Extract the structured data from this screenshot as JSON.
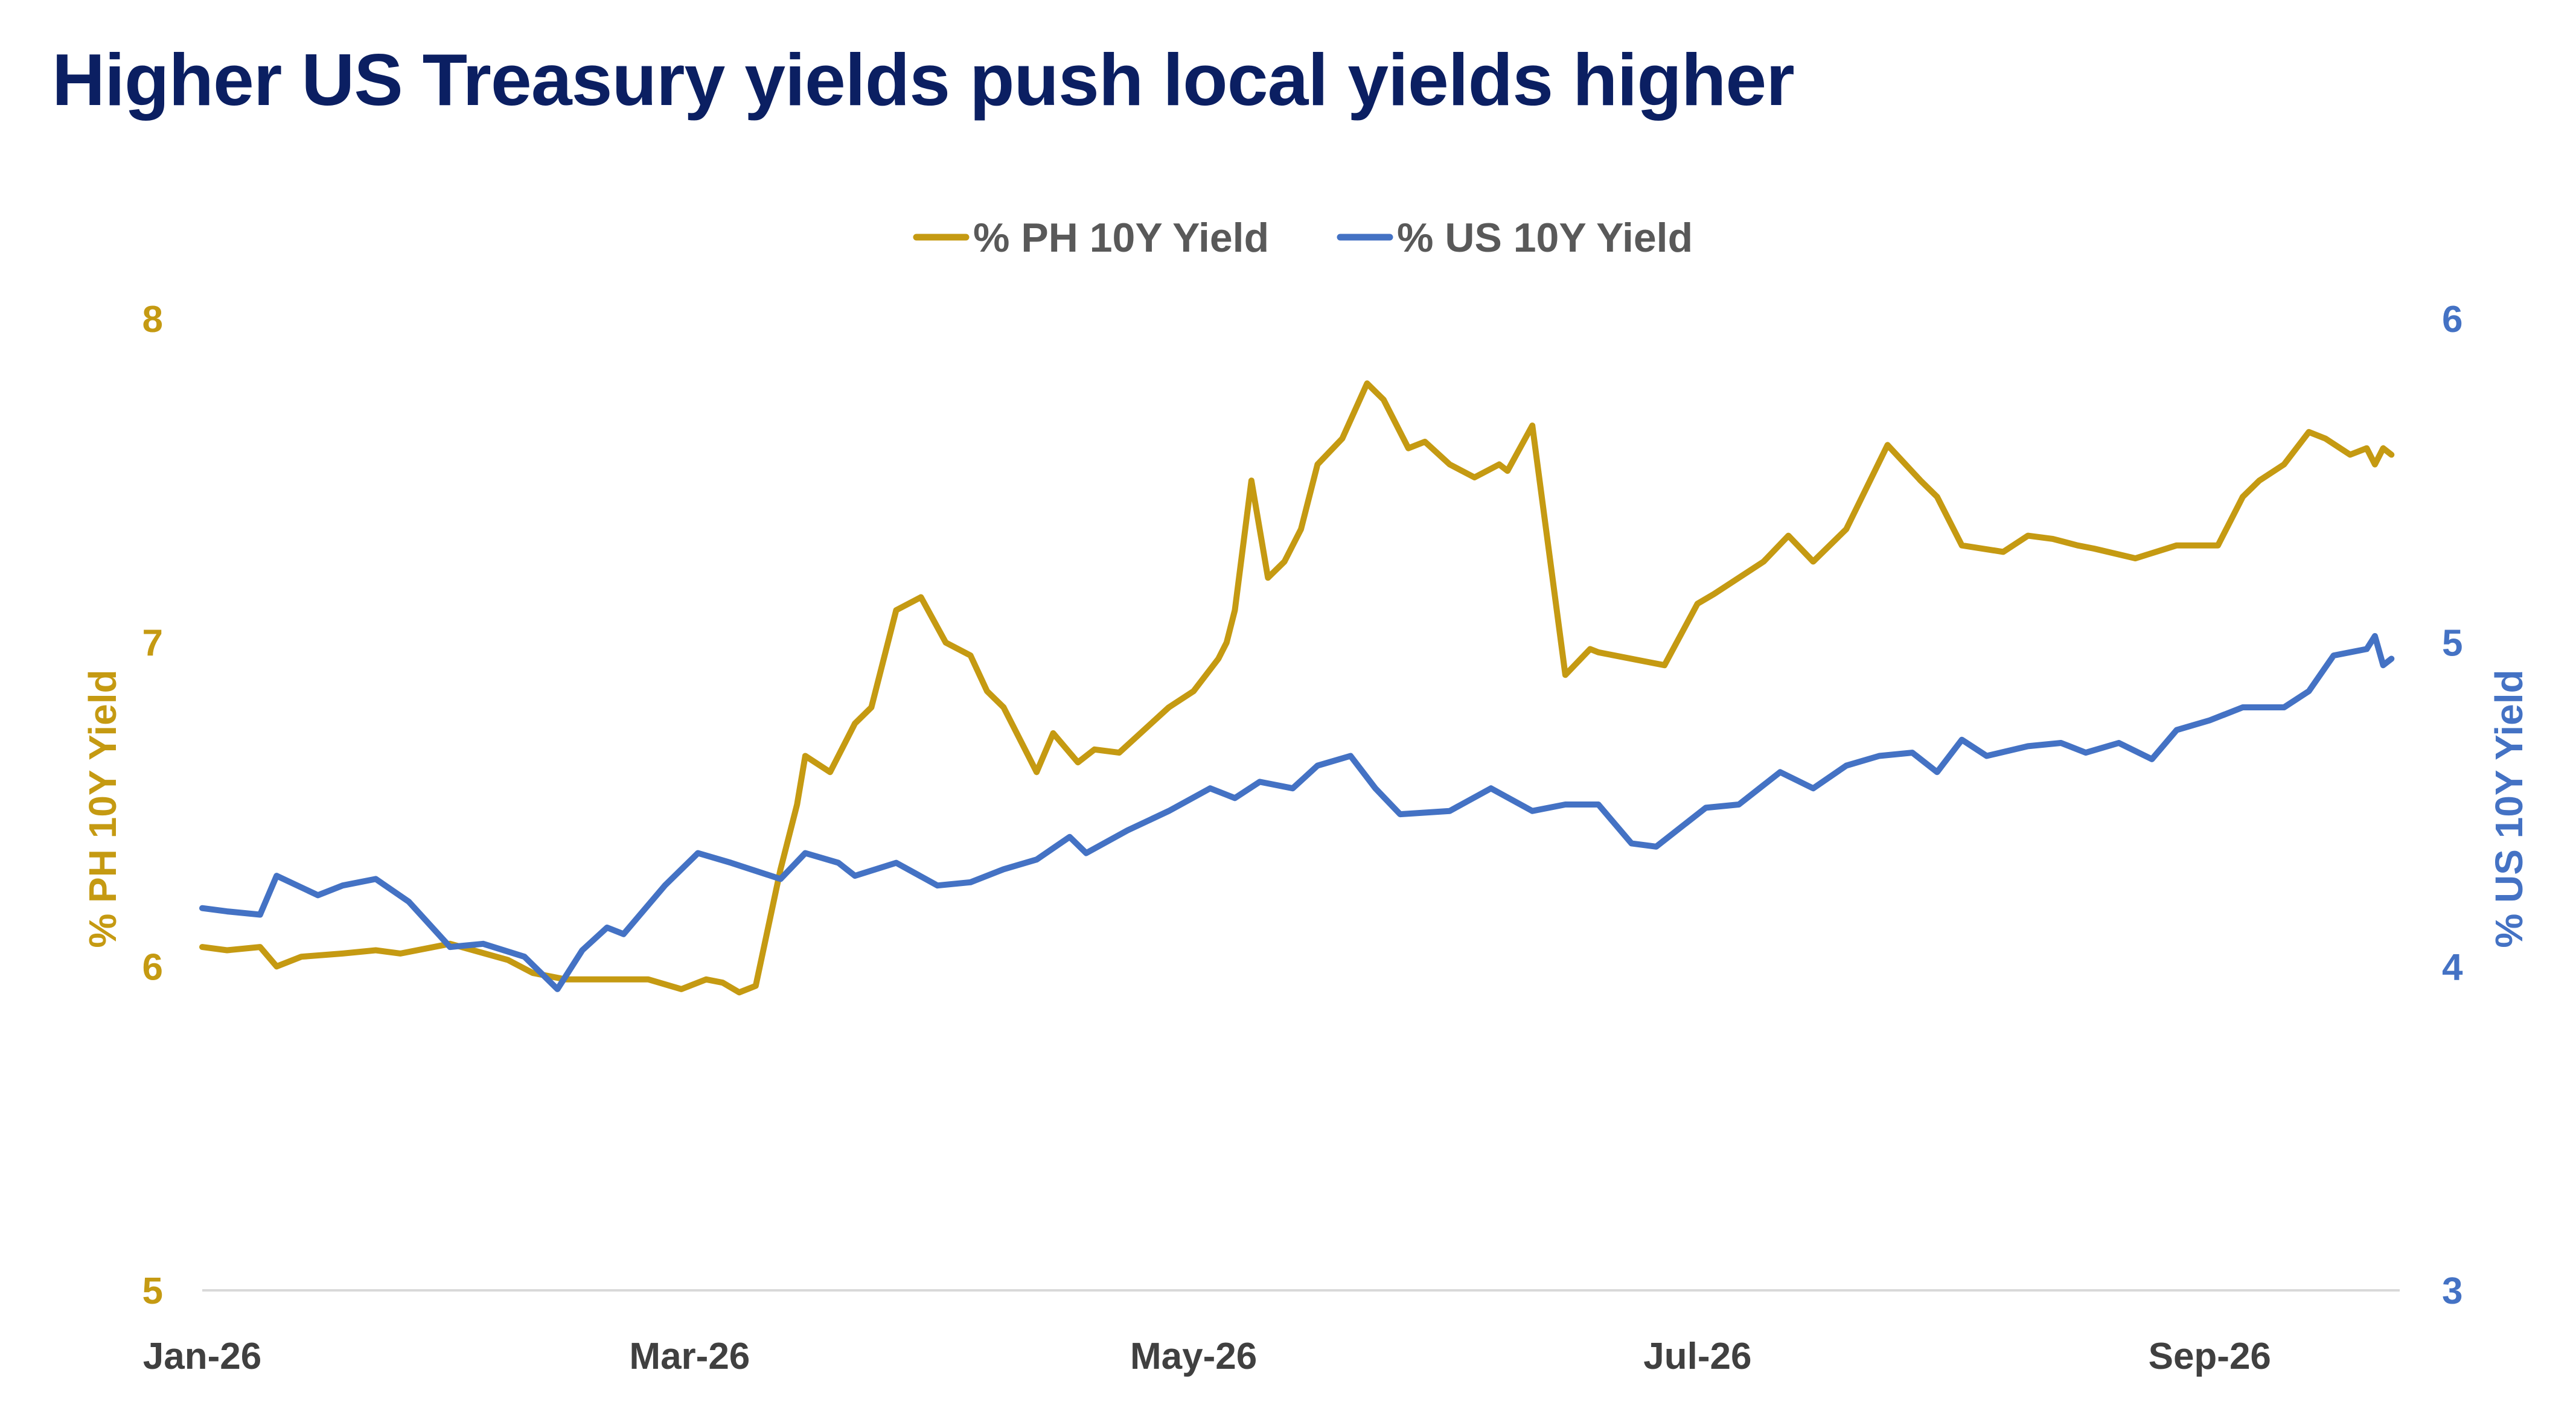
{
  "chart_data": {
    "type": "line",
    "title": "Higher US Treasury yields push local yields higher",
    "x_tick_labels": [
      "Jan-26",
      "Mar-26",
      "May-26",
      "Jul-26",
      "Sep-26"
    ],
    "x_tick_dates": [
      "2026-01-01",
      "2026-03-01",
      "2026-05-01",
      "2026-07-01",
      "2026-09-01"
    ],
    "xlim": [
      "2026-01-01",
      "2026-09-24"
    ],
    "y_left": {
      "label": "% PH 10Y Yield",
      "ylim": [
        5,
        8
      ],
      "ticks": [
        5,
        6,
        7,
        8
      ],
      "color": "#c59a12"
    },
    "y_right": {
      "label": "% US 10Y Yield",
      "ylim": [
        3,
        6
      ],
      "ticks": [
        3,
        4,
        5,
        6
      ],
      "color": "#4472c4"
    },
    "legend": {
      "placement": "top-center"
    },
    "grid": false,
    "series": [
      {
        "name": "% PH 10Y Yield",
        "axis": "left",
        "color": "#c59a12",
        "x": [
          "2026-01-01",
          "2026-01-04",
          "2026-01-08",
          "2026-01-10",
          "2026-01-13",
          "2026-01-18",
          "2026-01-22",
          "2026-01-25",
          "2026-01-31",
          "2026-02-07",
          "2026-02-10",
          "2026-02-14",
          "2026-02-19",
          "2026-02-24",
          "2026-02-28",
          "2026-03-03",
          "2026-03-05",
          "2026-03-07",
          "2026-03-09",
          "2026-03-12",
          "2026-03-14",
          "2026-03-15",
          "2026-03-18",
          "2026-03-21",
          "2026-03-23",
          "2026-03-26",
          "2026-03-29",
          "2026-04-01",
          "2026-04-04",
          "2026-04-06",
          "2026-04-08",
          "2026-04-12",
          "2026-04-14",
          "2026-04-17",
          "2026-04-19",
          "2026-04-22",
          "2026-04-28",
          "2026-05-01",
          "2026-05-04",
          "2026-05-05",
          "2026-05-06",
          "2026-05-08",
          "2026-05-10",
          "2026-05-12",
          "2026-05-14",
          "2026-05-16",
          "2026-05-19",
          "2026-05-22",
          "2026-05-24",
          "2026-05-27",
          "2026-05-29",
          "2026-06-01",
          "2026-06-04",
          "2026-06-07",
          "2026-06-08",
          "2026-06-11",
          "2026-06-15",
          "2026-06-18",
          "2026-06-19",
          "2026-06-25",
          "2026-06-27",
          "2026-07-01",
          "2026-07-03",
          "2026-07-09",
          "2026-07-12",
          "2026-07-15",
          "2026-07-19",
          "2026-07-24",
          "2026-07-28",
          "2026-07-30",
          "2026-08-02",
          "2026-08-07",
          "2026-08-10",
          "2026-08-13",
          "2026-08-16",
          "2026-08-18",
          "2026-08-23",
          "2026-08-28",
          "2026-09-02",
          "2026-09-05",
          "2026-09-07",
          "2026-09-10",
          "2026-09-13",
          "2026-09-15",
          "2026-09-18",
          "2026-09-20",
          "2026-09-21",
          "2026-09-22",
          "2026-09-23"
        ],
        "values": [
          6.06,
          6.05,
          6.06,
          6.0,
          6.03,
          6.04,
          6.05,
          6.04,
          6.07,
          6.02,
          5.98,
          5.96,
          5.96,
          5.96,
          5.93,
          5.96,
          5.95,
          5.92,
          5.94,
          6.3,
          6.5,
          6.65,
          6.6,
          6.75,
          6.8,
          7.1,
          7.14,
          7.0,
          6.96,
          6.85,
          6.8,
          6.6,
          6.72,
          6.63,
          6.67,
          6.66,
          6.8,
          6.85,
          6.95,
          7.0,
          7.1,
          7.5,
          7.2,
          7.25,
          7.35,
          7.55,
          7.63,
          7.8,
          7.75,
          7.6,
          7.62,
          7.55,
          7.51,
          7.55,
          7.53,
          7.67,
          6.9,
          6.98,
          6.97,
          6.94,
          6.93,
          7.12,
          7.15,
          7.25,
          7.33,
          7.25,
          7.35,
          7.61,
          7.5,
          7.45,
          7.3,
          7.28,
          7.33,
          7.32,
          7.3,
          7.29,
          7.26,
          7.3,
          7.3,
          7.45,
          7.5,
          7.55,
          7.65,
          7.63,
          7.58,
          7.6,
          7.55,
          7.6,
          7.58
        ]
      },
      {
        "name": "% US 10Y Yield",
        "axis": "right",
        "color": "#4472c4",
        "x": [
          "2026-01-01",
          "2026-01-04",
          "2026-01-08",
          "2026-01-10",
          "2026-01-15",
          "2026-01-18",
          "2026-01-22",
          "2026-01-26",
          "2026-01-31",
          "2026-02-04",
          "2026-02-09",
          "2026-02-13",
          "2026-02-16",
          "2026-02-19",
          "2026-02-21",
          "2026-02-26",
          "2026-03-02",
          "2026-03-06",
          "2026-03-12",
          "2026-03-15",
          "2026-03-19",
          "2026-03-21",
          "2026-03-26",
          "2026-03-31",
          "2026-04-04",
          "2026-04-08",
          "2026-04-12",
          "2026-04-16",
          "2026-04-18",
          "2026-04-23",
          "2026-04-28",
          "2026-05-03",
          "2026-05-06",
          "2026-05-09",
          "2026-05-13",
          "2026-05-16",
          "2026-05-20",
          "2026-05-23",
          "2026-05-26",
          "2026-06-01",
          "2026-06-06",
          "2026-06-11",
          "2026-06-15",
          "2026-06-19",
          "2026-06-23",
          "2026-06-26",
          "2026-07-02",
          "2026-07-06",
          "2026-07-11",
          "2026-07-15",
          "2026-07-19",
          "2026-07-23",
          "2026-07-27",
          "2026-07-30",
          "2026-08-02",
          "2026-08-05",
          "2026-08-10",
          "2026-08-14",
          "2026-08-17",
          "2026-08-21",
          "2026-08-25",
          "2026-08-28",
          "2026-09-01",
          "2026-09-05",
          "2026-09-10",
          "2026-09-13",
          "2026-09-16",
          "2026-09-20",
          "2026-09-21",
          "2026-09-22",
          "2026-09-23"
        ],
        "values": [
          4.18,
          4.17,
          4.16,
          4.28,
          4.22,
          4.25,
          4.27,
          4.2,
          4.06,
          4.07,
          4.03,
          3.93,
          4.05,
          4.12,
          4.1,
          4.25,
          4.35,
          4.32,
          4.27,
          4.35,
          4.32,
          4.28,
          4.32,
          4.25,
          4.26,
          4.3,
          4.33,
          4.4,
          4.35,
          4.42,
          4.48,
          4.55,
          4.52,
          4.57,
          4.55,
          4.62,
          4.65,
          4.55,
          4.47,
          4.48,
          4.55,
          4.48,
          4.5,
          4.5,
          4.38,
          4.37,
          4.49,
          4.5,
          4.6,
          4.55,
          4.62,
          4.65,
          4.66,
          4.6,
          4.7,
          4.65,
          4.68,
          4.69,
          4.66,
          4.69,
          4.64,
          4.73,
          4.76,
          4.8,
          4.8,
          4.85,
          4.96,
          4.98,
          5.02,
          4.93,
          4.95
        ]
      }
    ]
  }
}
